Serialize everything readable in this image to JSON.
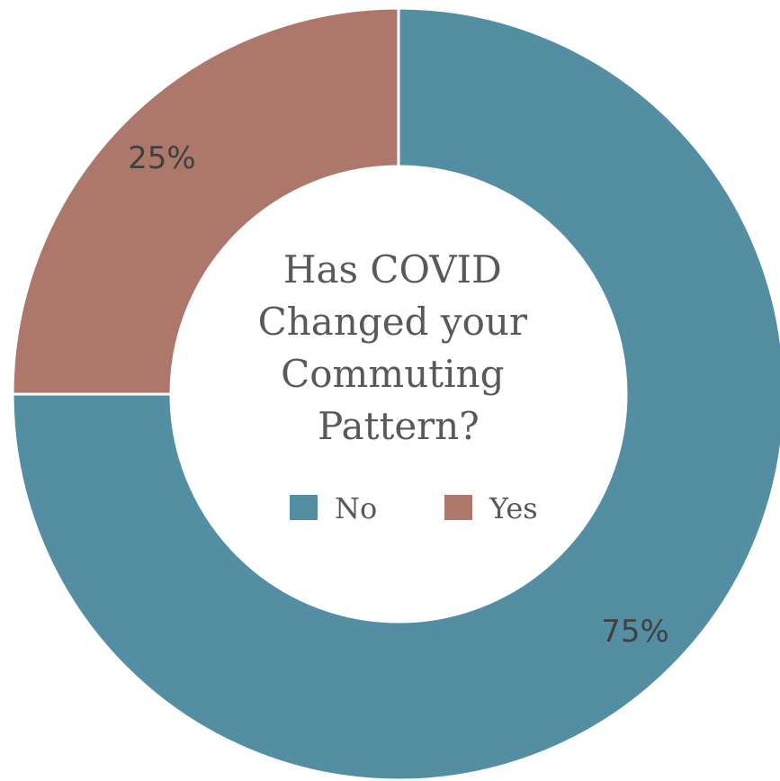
{
  "chart_data": {
    "type": "pie",
    "donut": true,
    "title": "Has COVID Changed your Commuting Pattern?",
    "categories": [
      "No",
      "Yes"
    ],
    "values": [
      75,
      25
    ],
    "data_labels": [
      "75%",
      "25%"
    ],
    "colors": [
      "#548EA2",
      "#AD786B"
    ],
    "legend": {
      "position": "center",
      "entries": [
        "No",
        "Yes"
      ]
    }
  }
}
